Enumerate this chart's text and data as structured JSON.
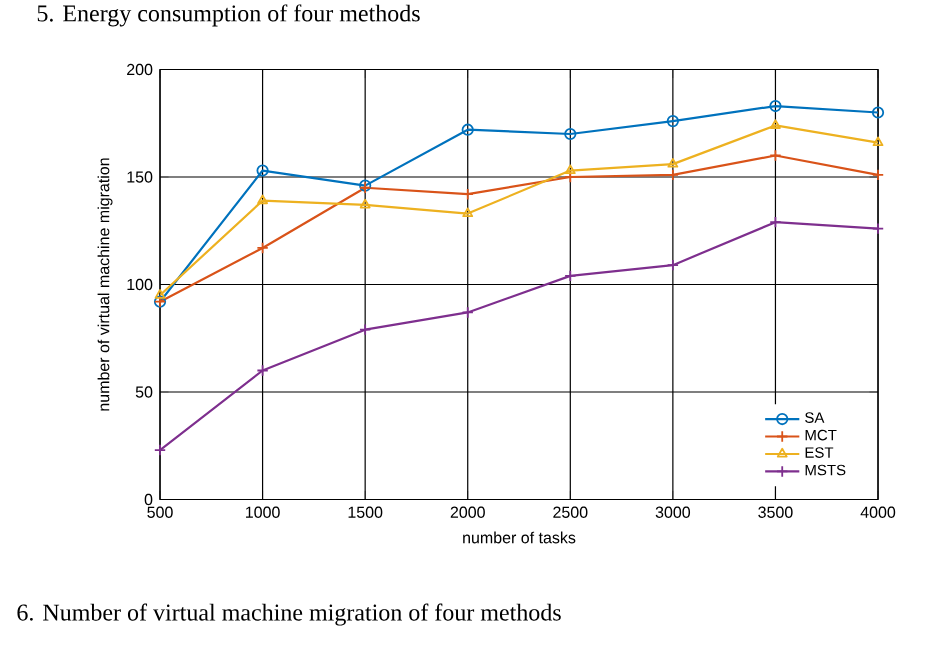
{
  "chart_data": {
    "type": "line",
    "xlabel": "number of tasks",
    "ylabel": "number of virtual machine migration",
    "x": [
      500,
      1000,
      1500,
      2000,
      2500,
      3000,
      3500,
      4000
    ],
    "series": [
      {
        "name": "SA",
        "color": "#0072bd",
        "marker": "circle",
        "values": [
          92,
          153,
          146,
          172,
          170,
          176,
          183,
          180
        ]
      },
      {
        "name": "MCT",
        "color": "#d95319",
        "marker": "cross",
        "values": [
          92,
          117,
          145,
          142,
          150,
          151,
          160,
          151
        ]
      },
      {
        "name": "EST",
        "color": "#edb120",
        "marker": "triangle",
        "values": [
          95,
          139,
          137,
          133,
          153,
          156,
          174,
          166
        ]
      },
      {
        "name": "MSTS",
        "color": "#7e2f8e",
        "marker": "cross",
        "values": [
          23,
          60,
          79,
          87,
          104,
          109,
          129,
          126
        ]
      }
    ],
    "xlim": [
      500,
      4000
    ],
    "xticks": [
      500,
      1000,
      1500,
      2000,
      2500,
      3000,
      3500,
      4000
    ],
    "ylim": [
      0,
      200
    ],
    "yticks": [
      0,
      50,
      100,
      150,
      200
    ],
    "grid": true,
    "legend": "bottom right",
    "line_style": "solid",
    "annotations": [
      "5. Energy consumption of four methods",
      "6. Number of virtual machine migration of four methods"
    ]
  }
}
